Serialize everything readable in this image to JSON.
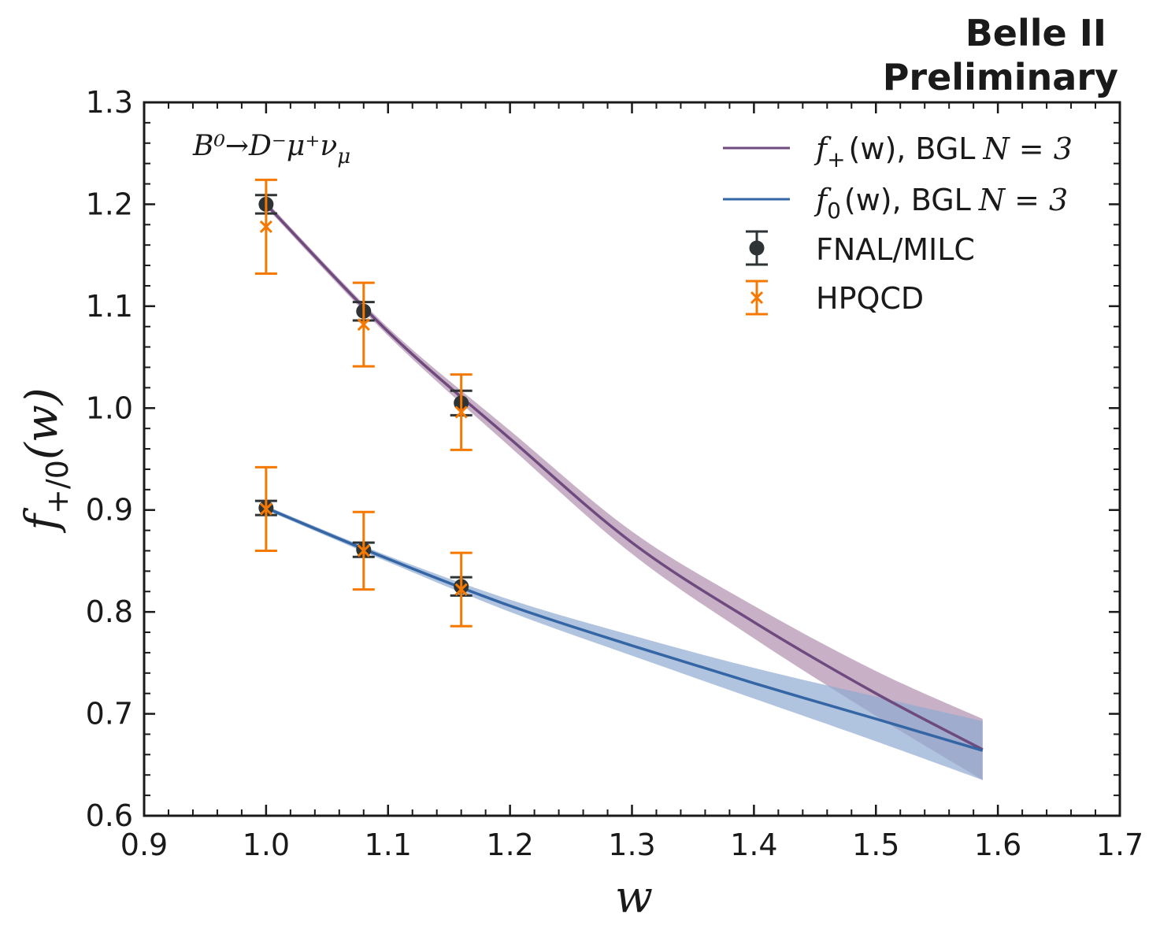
{
  "chart_data": {
    "type": "line",
    "title_line1": "Belle II",
    "title_line2": "Preliminary",
    "process_label": "B⁰→D⁻μ⁺ν",
    "process_subscript": "μ",
    "xlabel": "w",
    "ylabel": "f",
    "ylabel_subscript": "+/0",
    "ylabel_suffix": "(w)",
    "xlim": [
      0.9,
      1.7
    ],
    "ylim": [
      0.6,
      1.3
    ],
    "xticks": [
      0.9,
      1.0,
      1.1,
      1.2,
      1.3,
      1.4,
      1.5,
      1.6,
      1.7
    ],
    "yticks": [
      0.6,
      0.7,
      0.8,
      0.9,
      1.0,
      1.1,
      1.2,
      1.3
    ],
    "xtick_labels": [
      "0.9",
      "1.0",
      "1.1",
      "1.2",
      "1.3",
      "1.4",
      "1.5",
      "1.6",
      "1.7"
    ],
    "ytick_labels": [
      "0.6",
      "0.7",
      "0.8",
      "0.9",
      "1.0",
      "1.1",
      "1.2",
      "1.3"
    ],
    "bands": [
      {
        "name": "f+(w), BGL N = 3",
        "legend_f": "f",
        "legend_sub": "+",
        "legend_rest": "(w), BGL",
        "legend_n": "N = 3",
        "color": "#6e4a7e",
        "band_color": "#b597b3",
        "x": [
          1.0,
          1.1,
          1.2,
          1.3,
          1.4,
          1.5,
          1.5875
        ],
        "y": [
          1.2,
          1.075,
          0.97,
          0.868,
          0.79,
          0.72,
          0.665
        ],
        "y_low": [
          1.197,
          1.071,
          0.962,
          0.857,
          0.774,
          0.698,
          0.635
        ],
        "y_high": [
          1.203,
          1.079,
          0.978,
          0.879,
          0.806,
          0.742,
          0.695
        ]
      },
      {
        "name": "f0(w), BGL N = 3",
        "legend_f": "f",
        "legend_sub": "0",
        "legend_rest": "(w), BGL",
        "legend_n": "N = 3",
        "color": "#3465a4",
        "band_color": "#8eaad2",
        "x": [
          1.0,
          1.1,
          1.2,
          1.3,
          1.4,
          1.5,
          1.5875
        ],
        "y": [
          0.902,
          0.852,
          0.806,
          0.767,
          0.73,
          0.695,
          0.664
        ],
        "y_low": [
          0.9,
          0.849,
          0.8,
          0.757,
          0.715,
          0.673,
          0.635
        ],
        "y_high": [
          0.904,
          0.855,
          0.812,
          0.777,
          0.745,
          0.717,
          0.693
        ]
      }
    ],
    "points": [
      {
        "name": "FNAL/MILC",
        "marker": "circle",
        "color": "#2e3436",
        "x": [
          1.0,
          1.08,
          1.16,
          1.0,
          1.08,
          1.16
        ],
        "y": [
          1.2,
          1.095,
          1.005,
          0.902,
          0.861,
          0.825
        ],
        "err": [
          0.009,
          0.009,
          0.012,
          0.007,
          0.007,
          0.009
        ]
      },
      {
        "name": "HPQCD",
        "marker": "x",
        "color": "#f57900",
        "x": [
          1.0,
          1.08,
          1.16,
          1.0,
          1.08,
          1.16
        ],
        "y": [
          1.178,
          1.082,
          0.996,
          0.901,
          0.86,
          0.822
        ],
        "err": [
          0.046,
          0.041,
          0.037,
          0.041,
          0.038,
          0.036
        ]
      }
    ]
  }
}
